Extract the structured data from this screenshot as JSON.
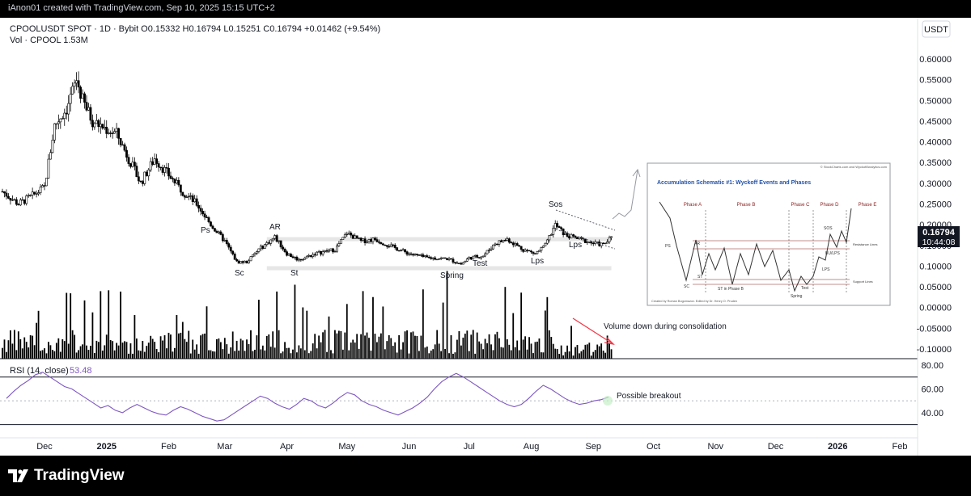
{
  "header": {
    "credit": "iAnon01 created with TradingView.com, Sep 10, 2025 15:15 UTC+2"
  },
  "legend": {
    "symbol_line": "CPOOLUSDT SPOT · 1D · Bybit  O0.15332  H0.16794  L0.15251  C0.16794  +0.01462 (+9.54%)",
    "volume_line": "Vol · CPOOL  1.53M",
    "rsi_label": "RSI (14, close)",
    "rsi_value": "53.48"
  },
  "currency": "USDT",
  "price_tag": {
    "value": "0.16794",
    "countdown": "10:44:08"
  },
  "annotations": {
    "ps": "Ps",
    "ar": "AR",
    "sc": "Sc",
    "st": "St",
    "spring": "Spring",
    "test": "Test",
    "lps1": "Lps",
    "lps2": "Lps",
    "sos": "Sos",
    "volume_note": "Volume down during consolidation",
    "breakout_note": "Possible breakout"
  },
  "inset": {
    "credit": "© StockCharts.com and WyckoffAnalytics.com",
    "title": "Accumulation Schematic #1: Wyckoff Events and Phases",
    "phases": [
      "Phase A",
      "Phase B",
      "Phase C",
      "Phase D",
      "Phase E"
    ],
    "labels": {
      "ps": "PS",
      "sc": "SC",
      "ar": "AR",
      "st": "ST",
      "st_b": "ST in Phase B",
      "spring": "Spring",
      "test": "Test",
      "sos": "SOS",
      "lps": "LPS",
      "bu_lps": "BU/LPS",
      "resistance": "Resistance Lines",
      "support": "Support Lines"
    },
    "footer": "Created by Roman Bogomazov. Edited by Dr. Henry O. Pruden"
  },
  "brand": {
    "name": "TradingView"
  },
  "chart_data": [
    {
      "type": "candlestick",
      "title": "CPOOLUSDT SPOT · 1D · Bybit",
      "y_ticks": [
        0.6,
        0.55,
        0.5,
        0.45,
        0.4,
        0.35,
        0.3,
        0.25,
        0.2,
        0.15,
        0.1,
        0.05,
        0.0,
        -0.05,
        -0.1
      ],
      "y_tick_labels": [
        "0.60000",
        "0.55000",
        "0.50000",
        "0.45000",
        "0.40000",
        "0.35000",
        "0.30000",
        "0.25000",
        "0.20000",
        "0.15000",
        "0.10000",
        "0.05000",
        "0.00000",
        "-0.05000",
        "-0.10000"
      ],
      "ylim": [
        -0.115,
        0.625
      ],
      "x_tick_labels": [
        "Dec",
        "2025",
        "Feb",
        "Mar",
        "Apr",
        "May",
        "Jun",
        "Jul",
        "Aug",
        "Sep",
        "Oct",
        "Nov",
        "Dec",
        "2026",
        "Feb"
      ],
      "x_tick_dates": [
        "2024-12-01",
        "2025-01-01",
        "2025-02-01",
        "2025-03-01",
        "2025-04-01",
        "2025-05-01",
        "2025-06-01",
        "2025-07-01",
        "2025-08-01",
        "2025-09-01",
        "2025-10-01",
        "2025-11-01",
        "2025-12-01",
        "2026-01-01",
        "2026-02-01"
      ],
      "start_date": "2024-11-10",
      "end_date": "2025-09-10",
      "close_anchors": [
        [
          "2024-11-10",
          0.28
        ],
        [
          "2024-11-18",
          0.25
        ],
        [
          "2024-11-25",
          0.27
        ],
        [
          "2024-12-01",
          0.29
        ],
        [
          "2024-12-06",
          0.44
        ],
        [
          "2024-12-12",
          0.48
        ],
        [
          "2024-12-17",
          0.55
        ],
        [
          "2024-12-20",
          0.5
        ],
        [
          "2024-12-25",
          0.45
        ],
        [
          "2025-01-01",
          0.43
        ],
        [
          "2025-01-06",
          0.42
        ],
        [
          "2025-01-12",
          0.36
        ],
        [
          "2025-01-18",
          0.3
        ],
        [
          "2025-01-25",
          0.36
        ],
        [
          "2025-02-01",
          0.32
        ],
        [
          "2025-02-08",
          0.28
        ],
        [
          "2025-02-15",
          0.25
        ],
        [
          "2025-02-22",
          0.2
        ],
        [
          "2025-03-01",
          0.16
        ],
        [
          "2025-03-07",
          0.11
        ],
        [
          "2025-03-12",
          0.11
        ],
        [
          "2025-03-18",
          0.14
        ],
        [
          "2025-03-26",
          0.17
        ],
        [
          "2025-04-01",
          0.13
        ],
        [
          "2025-04-07",
          0.115
        ],
        [
          "2025-04-15",
          0.13
        ],
        [
          "2025-04-25",
          0.14
        ],
        [
          "2025-05-01",
          0.18
        ],
        [
          "2025-05-08",
          0.16
        ],
        [
          "2025-05-15",
          0.165
        ],
        [
          "2025-05-22",
          0.15
        ],
        [
          "2025-06-01",
          0.13
        ],
        [
          "2025-06-10",
          0.12
        ],
        [
          "2025-06-20",
          0.118
        ],
        [
          "2025-06-27",
          0.105
        ],
        [
          "2025-07-01",
          0.12
        ],
        [
          "2025-07-08",
          0.125
        ],
        [
          "2025-07-14",
          0.155
        ],
        [
          "2025-07-20",
          0.165
        ],
        [
          "2025-07-28",
          0.14
        ],
        [
          "2025-08-03",
          0.13
        ],
        [
          "2025-08-08",
          0.15
        ],
        [
          "2025-08-13",
          0.2
        ],
        [
          "2025-08-18",
          0.175
        ],
        [
          "2025-08-25",
          0.165
        ],
        [
          "2025-09-01",
          0.155
        ],
        [
          "2025-09-06",
          0.152
        ],
        [
          "2025-09-10",
          0.168
        ]
      ],
      "horizontal_levels": [
        0.165,
        0.095
      ],
      "last_price": 0.16794
    },
    {
      "type": "bar",
      "title": "Vol · CPOOL",
      "last_value": "1.53M",
      "note": "Volume down during consolidation"
    },
    {
      "type": "line",
      "title": "RSI (14, close)",
      "last_value": 53.48,
      "y_ticks": [
        80,
        60,
        40
      ],
      "ylim": [
        27,
        80
      ],
      "bands": [
        70,
        30
      ],
      "midline": 50,
      "values": [
        52,
        58,
        63,
        67,
        72,
        74,
        70,
        66,
        62,
        60,
        56,
        52,
        48,
        44,
        46,
        42,
        40,
        44,
        47,
        44,
        41,
        39,
        38,
        42,
        45,
        43,
        40,
        37,
        35,
        33,
        34,
        38,
        42,
        46,
        50,
        54,
        52,
        48,
        45,
        43,
        47,
        52,
        50,
        46,
        44,
        48,
        53,
        57,
        55,
        50,
        47,
        45,
        42,
        40,
        38,
        41,
        44,
        48,
        53,
        60,
        66,
        70,
        73,
        70,
        66,
        62,
        58,
        54,
        50,
        47,
        45,
        47,
        52,
        58,
        63,
        60,
        56,
        52,
        49,
        47,
        48,
        50,
        51,
        53
      ]
    }
  ]
}
